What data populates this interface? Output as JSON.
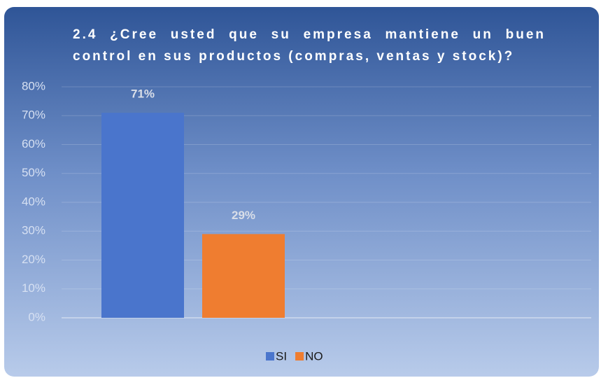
{
  "chart_data": {
    "type": "bar",
    "title": "2.4 ¿Cree usted que su empresa mantiene un buen control en sus productos (compras, ventas y stock)?",
    "categories": [
      null
    ],
    "series": [
      {
        "name": "SI",
        "color": "#4a75cc",
        "values": [
          71
        ],
        "value_labels": [
          "71%"
        ]
      },
      {
        "name": "NO",
        "color": "#ef7d30",
        "values": [
          29
        ],
        "value_labels": [
          "29%"
        ]
      }
    ],
    "ylim": [
      0,
      80
    ],
    "yticks": [
      {
        "value": 0,
        "label": "0%"
      },
      {
        "value": 10,
        "label": "10%"
      },
      {
        "value": 20,
        "label": "20%"
      },
      {
        "value": 30,
        "label": "30%"
      },
      {
        "value": 40,
        "label": "40%"
      },
      {
        "value": 50,
        "label": "50%"
      },
      {
        "value": 60,
        "label": "60%"
      },
      {
        "value": 70,
        "label": "70%"
      },
      {
        "value": 80,
        "label": "80%"
      }
    ],
    "grid": true,
    "legend": "bottom"
  }
}
